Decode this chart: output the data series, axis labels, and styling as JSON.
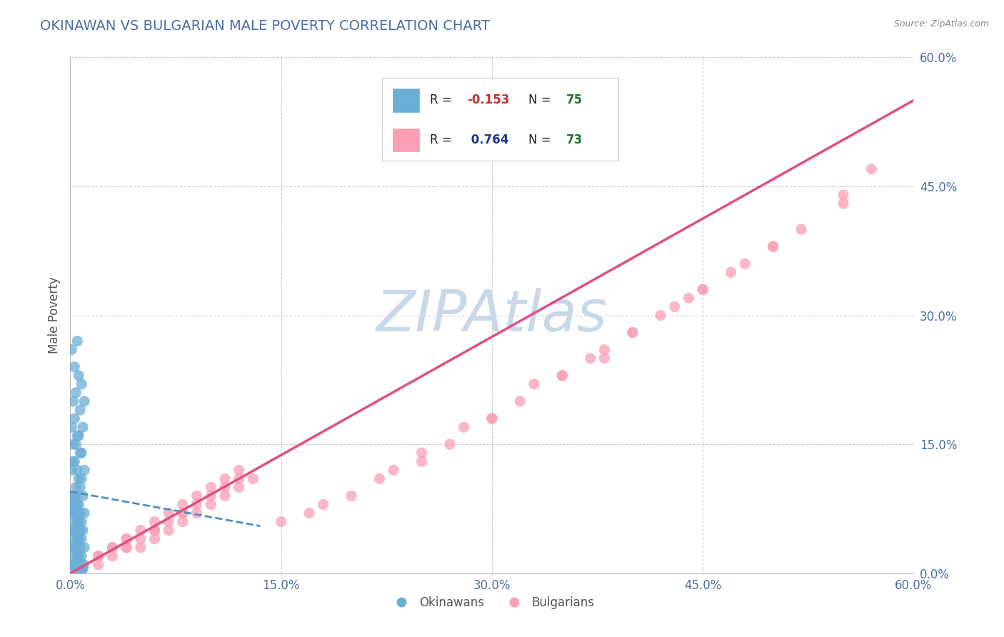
{
  "title": "OKINAWAN VS BULGARIAN MALE POVERTY CORRELATION CHART",
  "source": "Source: ZipAtlas.com",
  "ylabel": "Male Poverty",
  "xlim": [
    0,
    0.6
  ],
  "ylim": [
    0,
    0.6
  ],
  "xticks": [
    0.0,
    0.15,
    0.3,
    0.45,
    0.6
  ],
  "yticks": [
    0.0,
    0.15,
    0.3,
    0.45,
    0.6
  ],
  "xtick_labels": [
    "0.0%",
    "15.0%",
    "30.0%",
    "45.0%",
    "60.0%"
  ],
  "ytick_labels": [
    "0.0%",
    "15.0%",
    "30.0%",
    "45.0%",
    "60.0%"
  ],
  "okinawan_color": "#6baed6",
  "bulgarian_color": "#fa9fb5",
  "okinawan_line_color": "#4a90c4",
  "bulgarian_line_color": "#e05080",
  "okinawan_R": -0.153,
  "okinawan_N": 75,
  "bulgarian_R": 0.764,
  "bulgarian_N": 73,
  "watermark": "ZIPAtlas",
  "watermark_color": "#c8d8e8",
  "title_color": "#4a6fa5",
  "legend_R_neg_color": "#c03030",
  "legend_R_pos_color": "#1a3a8c",
  "legend_N_color": "#1a7a2a",
  "axis_label_color": "#555555",
  "tick_color": "#4a6fa5",
  "grid_color": "#cccccc",
  "okinawan_x": [
    0.005,
    0.003,
    0.008,
    0.002,
    0.01,
    0.004,
    0.006,
    0.001,
    0.007,
    0.003,
    0.009,
    0.005,
    0.002,
    0.008,
    0.004,
    0.006,
    0.001,
    0.007,
    0.003,
    0.01,
    0.005,
    0.002,
    0.008,
    0.004,
    0.006,
    0.001,
    0.007,
    0.003,
    0.009,
    0.005,
    0.002,
    0.01,
    0.004,
    0.006,
    0.001,
    0.007,
    0.003,
    0.008,
    0.005,
    0.002,
    0.004,
    0.006,
    0.001,
    0.009,
    0.003,
    0.007,
    0.005,
    0.002,
    0.008,
    0.004,
    0.006,
    0.001,
    0.01,
    0.003,
    0.007,
    0.005,
    0.002,
    0.008,
    0.004,
    0.006,
    0.001,
    0.009,
    0.003,
    0.007,
    0.005,
    0.002,
    0.008,
    0.004,
    0.006,
    0.001,
    0.007,
    0.003,
    0.009,
    0.005,
    0.002
  ],
  "okinawan_y": [
    0.27,
    0.24,
    0.22,
    0.2,
    0.2,
    0.21,
    0.23,
    0.26,
    0.19,
    0.18,
    0.17,
    0.16,
    0.15,
    0.14,
    0.15,
    0.16,
    0.17,
    0.14,
    0.13,
    0.12,
    0.12,
    0.13,
    0.11,
    0.1,
    0.11,
    0.12,
    0.1,
    0.09,
    0.09,
    0.08,
    0.08,
    0.07,
    0.09,
    0.08,
    0.09,
    0.07,
    0.08,
    0.06,
    0.07,
    0.08,
    0.07,
    0.06,
    0.07,
    0.05,
    0.06,
    0.05,
    0.06,
    0.07,
    0.04,
    0.05,
    0.04,
    0.05,
    0.03,
    0.04,
    0.03,
    0.04,
    0.05,
    0.02,
    0.03,
    0.02,
    0.03,
    0.01,
    0.02,
    0.01,
    0.02,
    0.03,
    0.005,
    0.01,
    0.005,
    0.01,
    0.005,
    0.01,
    0.005,
    0.005,
    0.005
  ],
  "bulgarian_x": [
    0.005,
    0.01,
    0.02,
    0.03,
    0.05,
    0.04,
    0.06,
    0.07,
    0.08,
    0.09,
    0.1,
    0.11,
    0.12,
    0.13,
    0.03,
    0.05,
    0.07,
    0.09,
    0.11,
    0.06,
    0.08,
    0.04,
    0.1,
    0.12,
    0.02,
    0.04,
    0.06,
    0.08,
    0.02,
    0.03,
    0.04,
    0.05,
    0.06,
    0.07,
    0.08,
    0.09,
    0.1,
    0.11,
    0.12,
    0.57,
    0.55,
    0.5,
    0.52,
    0.48,
    0.45,
    0.47,
    0.42,
    0.44,
    0.4,
    0.43,
    0.38,
    0.35,
    0.37,
    0.3,
    0.33,
    0.28,
    0.25,
    0.22,
    0.18,
    0.15,
    0.2,
    0.25,
    0.3,
    0.35,
    0.4,
    0.45,
    0.5,
    0.55,
    0.38,
    0.32,
    0.27,
    0.23,
    0.17
  ],
  "bulgarian_y": [
    0.005,
    0.01,
    0.01,
    0.02,
    0.03,
    0.03,
    0.04,
    0.05,
    0.06,
    0.07,
    0.08,
    0.09,
    0.1,
    0.11,
    0.03,
    0.04,
    0.06,
    0.08,
    0.1,
    0.05,
    0.07,
    0.04,
    0.09,
    0.11,
    0.02,
    0.03,
    0.05,
    0.07,
    0.02,
    0.03,
    0.04,
    0.05,
    0.06,
    0.07,
    0.08,
    0.09,
    0.1,
    0.11,
    0.12,
    0.47,
    0.44,
    0.38,
    0.4,
    0.36,
    0.33,
    0.35,
    0.3,
    0.32,
    0.28,
    0.31,
    0.26,
    0.23,
    0.25,
    0.18,
    0.22,
    0.17,
    0.14,
    0.11,
    0.08,
    0.06,
    0.09,
    0.13,
    0.18,
    0.23,
    0.28,
    0.33,
    0.38,
    0.43,
    0.25,
    0.2,
    0.15,
    0.12,
    0.07
  ],
  "bul_line_x0": 0.0,
  "bul_line_y0": 0.0,
  "bul_line_x1": 0.6,
  "bul_line_y1": 0.55,
  "ok_line_x0": 0.0,
  "ok_line_y0": 0.095,
  "ok_line_x1": 0.135,
  "ok_line_y1": 0.055
}
